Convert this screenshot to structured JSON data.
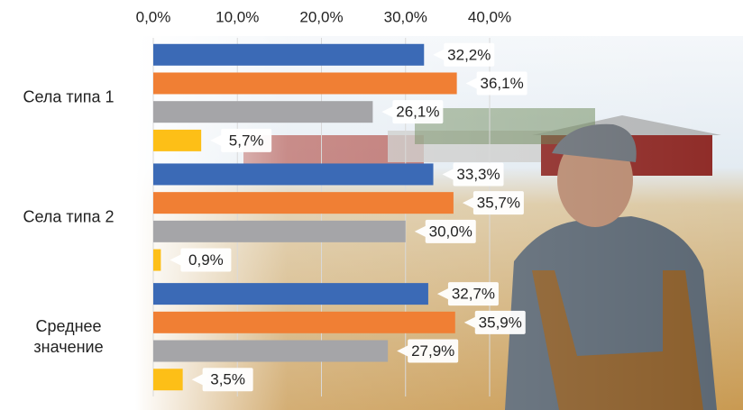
{
  "chart_data": {
    "type": "hbar",
    "categories": [
      "Села типа 1",
      "Села типа 2",
      "Среднее значение"
    ],
    "series": [
      {
        "color": "#3b6ab6",
        "values": [
          32.2,
          33.3,
          32.7
        ],
        "value_labels": [
          "32,2%",
          "33,3%",
          "32,7%"
        ]
      },
      {
        "color": "#f07f34",
        "values": [
          36.1,
          35.7,
          35.9
        ],
        "value_labels": [
          "36,1%",
          "35,7%",
          "35,9%"
        ]
      },
      {
        "color": "#a5a5a8",
        "values": [
          26.1,
          30.0,
          27.9
        ],
        "value_labels": [
          "26,1%",
          "30,0%",
          "27,9%"
        ]
      },
      {
        "color": "#fdbf17",
        "values": [
          5.7,
          0.9,
          3.5
        ],
        "value_labels": [
          "5,7%",
          "0,9%",
          "3,5%"
        ]
      }
    ],
    "xlim": [
      0,
      40
    ],
    "xticks": [
      {
        "value": 0,
        "label": "0,0%"
      },
      {
        "value": 10,
        "label": "10,0%"
      },
      {
        "value": 20,
        "label": "20,0%"
      },
      {
        "value": 30,
        "label": "30,0%"
      },
      {
        "value": 40,
        "label": "40,0%"
      }
    ],
    "grid": true
  }
}
